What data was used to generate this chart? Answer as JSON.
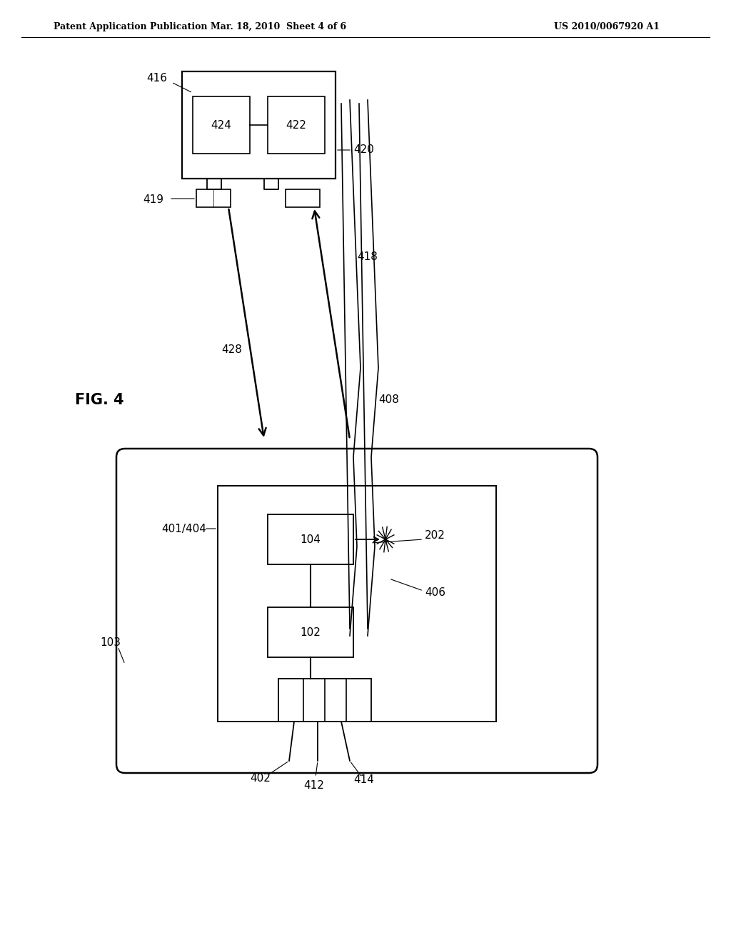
{
  "bg_color": "#ffffff",
  "text_color": "#000000",
  "header_left": "Patent Application Publication",
  "header_mid": "Mar. 18, 2010  Sheet 4 of 6",
  "header_right": "US 2010/0067920 A1",
  "fig_label": "FIG. 4"
}
